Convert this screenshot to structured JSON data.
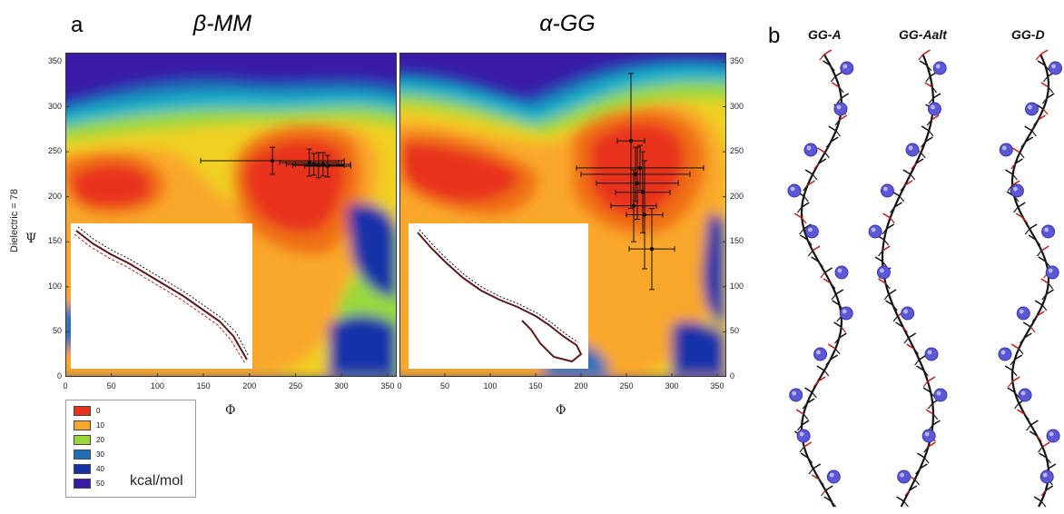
{
  "panel_a": {
    "letter": "a",
    "y_side_label": "Dielectric = 78",
    "y_axis_symbol": "Ψ",
    "x_axis_symbol": "Φ",
    "tick_labels": [
      "0",
      "50",
      "100",
      "150",
      "200",
      "250",
      "300",
      "350"
    ],
    "plots": [
      {
        "title": "β-MM"
      },
      {
        "title": "α-GG"
      }
    ]
  },
  "legend": {
    "unit": "kcal/mol",
    "entries": [
      {
        "label": "0",
        "color": "#e8321a"
      },
      {
        "label": "10",
        "color": "#f9a72a"
      },
      {
        "label": "20",
        "color": "#9ad83a"
      },
      {
        "label": "30",
        "color": "#1f6fb7"
      },
      {
        "label": "40",
        "color": "#1630a8"
      },
      {
        "label": "50",
        "color": "#3a1aa8"
      }
    ]
  },
  "panel_b": {
    "letter": "b",
    "structures": [
      {
        "title": "GG-A"
      },
      {
        "title": "GG-Aalt"
      },
      {
        "title": "GG-D"
      }
    ]
  },
  "chart_data": [
    {
      "type": "heatmap",
      "title": "β-MM",
      "xlabel": "Φ",
      "ylabel": "Ψ",
      "xlim": [
        0,
        360
      ],
      "ylim": [
        0,
        360
      ],
      "color_scale": [
        0,
        10,
        20,
        30,
        40,
        50
      ],
      "unit": "kcal/mol",
      "error_points": [
        {
          "x": 225,
          "y": 240,
          "xerr": 78,
          "yerr": 15
        },
        {
          "x": 265,
          "y": 238,
          "xerr": 32,
          "yerr": 15
        },
        {
          "x": 270,
          "y": 236,
          "xerr": 30,
          "yerr": 12
        },
        {
          "x": 275,
          "y": 235,
          "xerr": 28,
          "yerr": 14
        },
        {
          "x": 280,
          "y": 236,
          "xerr": 30,
          "yerr": 13
        },
        {
          "x": 285,
          "y": 234,
          "xerr": 25,
          "yerr": 12
        }
      ]
    },
    {
      "type": "heatmap",
      "title": "α-GG",
      "xlabel": "Φ",
      "ylabel": "Ψ",
      "xlim": [
        0,
        360
      ],
      "ylim": [
        0,
        360
      ],
      "color_scale": [
        0,
        10,
        20,
        30,
        40,
        50
      ],
      "unit": "kcal/mol",
      "error_points": [
        {
          "x": 255,
          "y": 262,
          "xerr": 15,
          "yerr": 75
        },
        {
          "x": 265,
          "y": 232,
          "xerr": 70,
          "yerr": 25
        },
        {
          "x": 260,
          "y": 225,
          "xerr": 60,
          "yerr": 30
        },
        {
          "x": 262,
          "y": 215,
          "xerr": 45,
          "yerr": 40
        },
        {
          "x": 268,
          "y": 205,
          "xerr": 30,
          "yerr": 45
        },
        {
          "x": 258,
          "y": 190,
          "xerr": 25,
          "yerr": 40
        },
        {
          "x": 270,
          "y": 180,
          "xerr": 20,
          "yerr": 60
        },
        {
          "x": 278,
          "y": 142,
          "xerr": 25,
          "yerr": 45
        }
      ]
    }
  ]
}
